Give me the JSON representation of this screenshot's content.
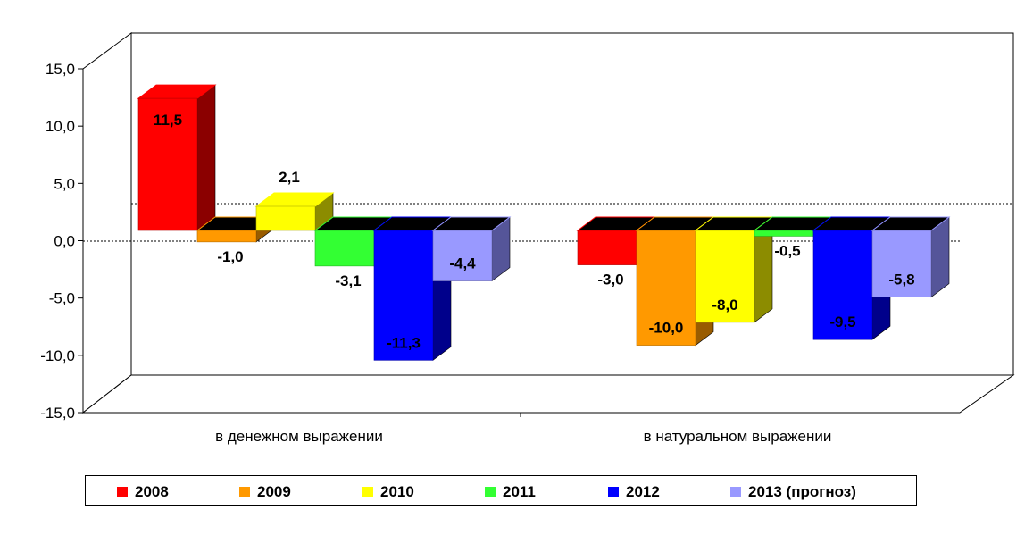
{
  "chart_data": {
    "type": "bar",
    "title": "",
    "xlabel": "",
    "ylabel": "",
    "ylim": [
      -15,
      15
    ],
    "yticks": [
      "15,0",
      "10,0",
      "5,0",
      "0,0",
      "-5,0",
      "-10,0",
      "-15,0"
    ],
    "ytick_values": [
      15,
      10,
      5,
      0,
      -5,
      -10,
      -15
    ],
    "categories": [
      "в денежном выражении",
      "в натуральном выражении"
    ],
    "series": [
      {
        "name": "2008",
        "color": "#ff0000",
        "side": "#8b0000",
        "values": [
          11.5,
          -3.0
        ],
        "labels": [
          "11,5",
          "-3,0"
        ]
      },
      {
        "name": "2009",
        "color": "#ff9900",
        "side": "#995c00",
        "values": [
          -1.0,
          -10.0
        ],
        "labels": [
          "-1,0",
          "-10,0"
        ]
      },
      {
        "name": "2010",
        "color": "#ffff00",
        "side": "#8c8c00",
        "values": [
          2.1,
          -8.0
        ],
        "labels": [
          "2,1",
          "-8,0"
        ]
      },
      {
        "name": "2011",
        "color": "#33ff33",
        "side": "#149914",
        "values": [
          -3.1,
          -0.5
        ],
        "labels": [
          "-3,1",
          "-0,5"
        ]
      },
      {
        "name": "2012",
        "color": "#0000ff",
        "side": "#00008b",
        "values": [
          -11.3,
          -9.5
        ],
        "labels": [
          "-11,3",
          "-9,5"
        ]
      },
      {
        "name": "2013 (прогноз)",
        "color": "#9999ff",
        "side": "#555599",
        "values": [
          -4.4,
          -5.8
        ],
        "labels": [
          "-4,4",
          "-5,8"
        ]
      }
    ],
    "grid": false,
    "legend": "bottom"
  }
}
